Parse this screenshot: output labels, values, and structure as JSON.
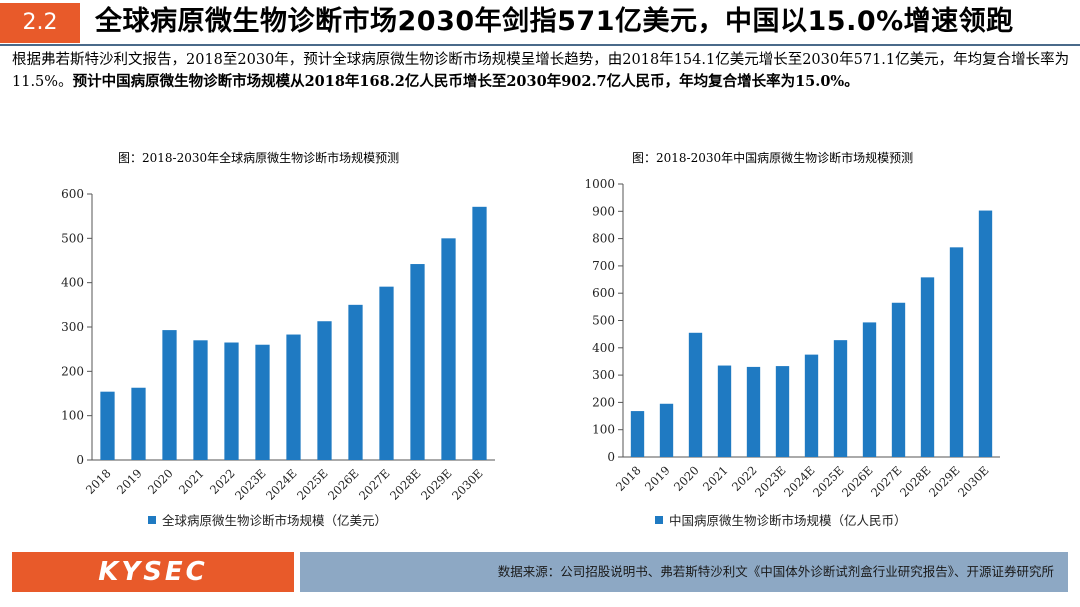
{
  "header": {
    "section_number": "2.2",
    "title": "全球病原微生物诊断市场2030年剑指571亿美元，中国以15.0%增速领跑"
  },
  "summary": {
    "part1": "根据弗若斯特沙利文报告，2018至2030年，预计全球病原微生物诊断市场规模呈增长趋势，由2018年154.1亿美元增长至2030年571.1亿美元，年均复合增长率为11.5%。",
    "part2": "预计中国病原微生物诊断市场规模从2018年168.2亿人民币增长至2030年902.7亿人民币，年均复合增长率为15.0%。"
  },
  "chart_data": [
    {
      "type": "bar",
      "title": "图：2018-2030年全球病原微生物诊断市场规模预测",
      "categories": [
        "2018",
        "2019",
        "2020",
        "2021",
        "2022",
        "2023E",
        "2024E",
        "2025E",
        "2026E",
        "2027E",
        "2028E",
        "2029E",
        "2030E"
      ],
      "values": [
        154.1,
        163,
        293,
        270,
        265,
        260,
        283,
        313,
        350,
        391,
        442,
        500,
        571.1
      ],
      "ylim": [
        0,
        600
      ],
      "yticks": [
        "0",
        "100",
        "200",
        "300",
        "400",
        "500",
        "600"
      ],
      "legend": "全球病原微生物诊断市场规模（亿美元）",
      "color": "#1f7ac2"
    },
    {
      "type": "bar",
      "title": "图：2018-2030年中国病原微生物诊断市场规模预测",
      "categories": [
        "2018",
        "2019",
        "2020",
        "2021",
        "2022",
        "2023E",
        "2024E",
        "2025E",
        "2026E",
        "2027E",
        "2028E",
        "2029E",
        "2030E"
      ],
      "values": [
        168.2,
        195,
        455,
        335,
        330,
        333,
        375,
        428,
        493,
        565,
        658,
        768,
        902.7
      ],
      "ylim": [
        0,
        1000
      ],
      "yticks": [
        "0",
        "100",
        "200",
        "300",
        "400",
        "500",
        "600",
        "700",
        "800",
        "900",
        "1000"
      ],
      "legend": "中国病原微生物诊断市场规模（亿人民币）",
      "color": "#1f7ac2"
    }
  ],
  "footer": {
    "logo": "KYSEC",
    "source": "数据来源：公司招股说明书、弗若斯特沙利文《中国体外诊断试剂盒行业研究报告》、开源证券研究所"
  }
}
